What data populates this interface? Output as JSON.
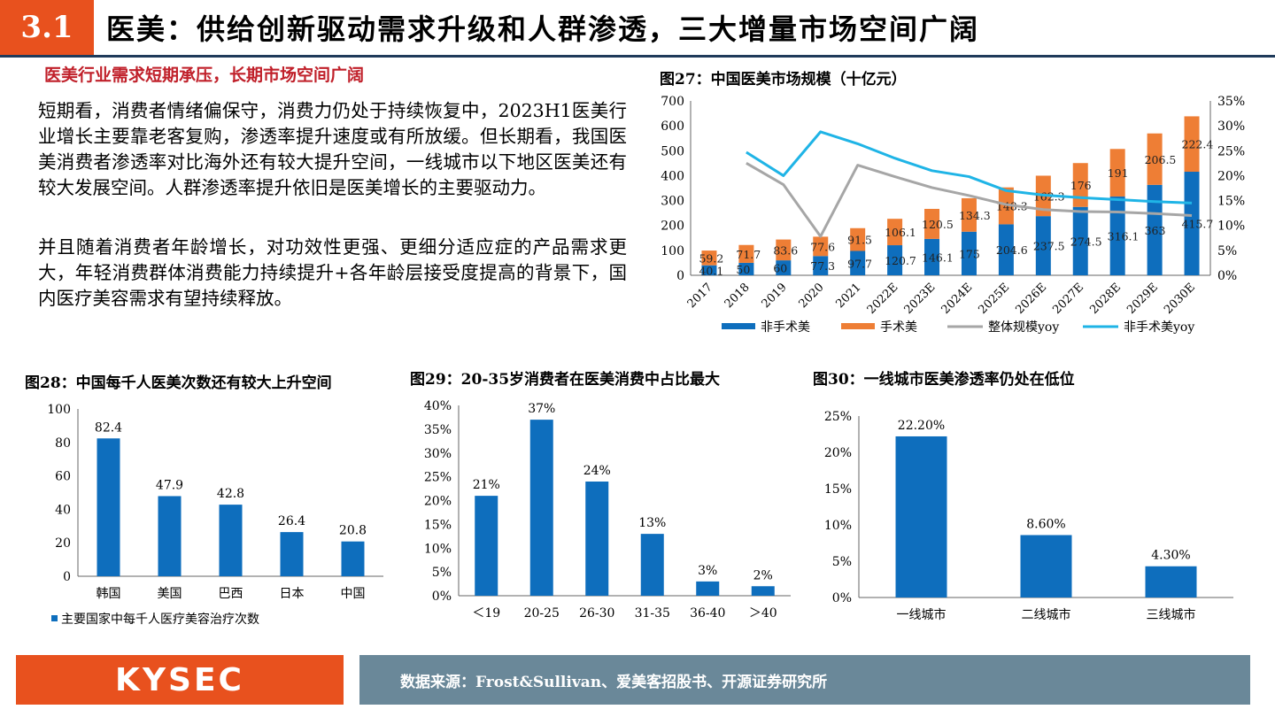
{
  "header": {
    "section_number": "3.1",
    "title": "医美：供给创新驱动需求升级和人群渗透，三大增量市场空间广阔"
  },
  "subtitle": "医美行业需求短期承压，长期市场空间广阔",
  "paragraphs": [
    "短期看，消费者情绪偏保守，消费力仍处于持续恢复中，2023H1医美行业增长主要靠老客复购，渗透率提升速度或有所放缓。但长期看，我国医美消费者渗透率对比海外还有较大提升空间，一线城市以下地区医美还有较大发展空间。人群渗透率提升依旧是医美增长的主要驱动力。",
    "并且随着消费者年龄增长，对功效性更强、更细分适应症的产品需求更大，年轻消费群体消费能力持续提升+各年龄层接受度提高的背景下，国内医疗美容需求有望持续释放。"
  ],
  "colors": {
    "accent": "#e8511e",
    "blue": "#0e6ebd",
    "orange": "#ee7e35",
    "gray": "#a6a6a6",
    "cyan": "#1fb4e6",
    "footer": "#6a8899"
  },
  "footer": {
    "logo": "KYSEC",
    "source": "数据来源：Frost&Sullivan、爱美客招股书、开源证券研究所"
  },
  "chart_data": [
    {
      "type": "bar",
      "stacked": true,
      "title": "图27：中国医美市场规模（十亿元）",
      "categories": [
        "2017",
        "2018",
        "2019",
        "2020",
        "2021",
        "2022E",
        "2023E",
        "2024E",
        "2025E",
        "2026E",
        "2027E",
        "2028E",
        "2029E",
        "2030E"
      ],
      "ylim": [
        0,
        700
      ],
      "yticks": [
        "0",
        "100",
        "200",
        "300",
        "400",
        "500",
        "600",
        "700"
      ],
      "y2lim": [
        0,
        0.35
      ],
      "y2ticks": [
        "0%",
        "5%",
        "10%",
        "15%",
        "20%",
        "25%",
        "30%",
        "35%"
      ],
      "series": [
        {
          "name": "非手术美",
          "values": [
            40.1,
            50,
            60,
            77.3,
            97.7,
            120.7,
            146.1,
            175,
            204.6,
            237.5,
            274.5,
            316.1,
            363,
            415.7
          ],
          "labels": [
            "40.1",
            "50",
            "60",
            "77.3",
            "97.7",
            "120.7",
            "146.1",
            "175",
            "204.6",
            "237.5",
            "274.5",
            "316.1",
            "363",
            "415.7"
          ]
        },
        {
          "name": "手术美",
          "values": [
            59.2,
            71.7,
            83.6,
            77.6,
            91.5,
            106.1,
            120.5,
            134.3,
            148.3,
            162.3,
            176,
            191,
            206.5,
            222.4
          ],
          "labels": [
            "59.2",
            "71.7",
            "83.6",
            "77.6",
            "91.5",
            "106.1",
            "120.5",
            "134.3",
            "148.3",
            "162.3",
            "176",
            "191",
            "206.5",
            "222.4"
          ]
        },
        {
          "name": "整体规模yoy",
          "axis": "right",
          "type": "line",
          "values": [
            null,
            0.225,
            0.182,
            0.078,
            0.221,
            0.198,
            0.176,
            0.16,
            0.142,
            0.132,
            0.128,
            0.127,
            0.124,
            0.12
          ]
        },
        {
          "name": "非手术美yoy",
          "axis": "right",
          "type": "line",
          "values": [
            null,
            0.247,
            0.2,
            0.288,
            0.264,
            0.235,
            0.21,
            0.198,
            0.17,
            0.161,
            0.156,
            0.152,
            0.148,
            0.145
          ]
        }
      ]
    },
    {
      "type": "bar",
      "title": "图28：中国每千人医美次数还有较大上升空间",
      "categories": [
        "韩国",
        "美国",
        "巴西",
        "日本",
        "中国"
      ],
      "values": [
        82.4,
        47.9,
        42.8,
        26.4,
        20.8
      ],
      "labels": [
        "82.4",
        "47.9",
        "42.8",
        "26.4",
        "20.8"
      ],
      "ylim": [
        0,
        100
      ],
      "yticks": [
        "0",
        "20",
        "40",
        "60",
        "80",
        "100"
      ],
      "legend": "主要国家中每千人医疗美容治疗次数"
    },
    {
      "type": "bar",
      "title": "图29：20-35岁消费者在医美消费中占比最大",
      "categories": [
        "＜19",
        "20-25",
        "26-30",
        "31-35",
        "36-40",
        "＞40"
      ],
      "values": [
        0.21,
        0.37,
        0.24,
        0.13,
        0.03,
        0.02
      ],
      "labels": [
        "21%",
        "37%",
        "24%",
        "13%",
        "3%",
        "2%"
      ],
      "ylim": [
        0,
        0.4
      ],
      "yticks": [
        "0%",
        "5%",
        "10%",
        "15%",
        "20%",
        "25%",
        "30%",
        "35%",
        "40%"
      ]
    },
    {
      "type": "bar",
      "title": "图30：一线城市医美渗透率仍处在低位",
      "categories": [
        "一线城市",
        "二线城市",
        "三线城市"
      ],
      "values": [
        0.222,
        0.086,
        0.043
      ],
      "labels": [
        "22.20%",
        "8.60%",
        "4.30%"
      ],
      "ylim": [
        0,
        0.25
      ],
      "yticks": [
        "0%",
        "5%",
        "10%",
        "15%",
        "20%",
        "25%"
      ]
    }
  ]
}
